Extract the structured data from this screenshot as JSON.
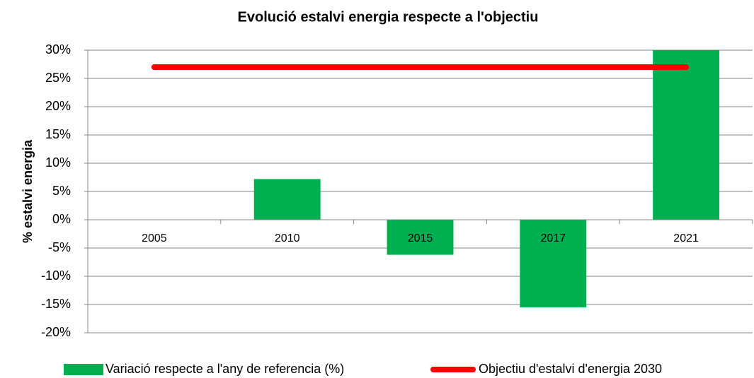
{
  "chart_data": {
    "type": "bar",
    "title": "Evolució estalvi energia respecte a l'objectiu",
    "y_label": "% estalvi energia",
    "categories": [
      "2005",
      "2010",
      "2015",
      "2017",
      "2021"
    ],
    "series": [
      {
        "name": "Variació respecte a l'any de referencia (%)",
        "type": "bar",
        "color": "#00b050",
        "values": [
          0,
          7.2,
          -6.2,
          -15.5,
          30
        ]
      },
      {
        "name": "Objectiu d'estalvi d'energia 2030",
        "type": "line",
        "color": "#ff0000",
        "values": [
          27,
          27,
          27,
          27,
          27
        ]
      }
    ],
    "ylim": [
      -20,
      30
    ],
    "yticks": [
      {
        "value": -20,
        "label": "-20%"
      },
      {
        "value": -15,
        "label": "-15%"
      },
      {
        "value": -10,
        "label": "-10%"
      },
      {
        "value": -5,
        "label": "-5%"
      },
      {
        "value": 0,
        "label": "0%"
      },
      {
        "value": 5,
        "label": "5%"
      },
      {
        "value": 10,
        "label": "10%"
      },
      {
        "value": 15,
        "label": "15%"
      },
      {
        "value": 20,
        "label": "20%"
      },
      {
        "value": 25,
        "label": "25%"
      },
      {
        "value": 30,
        "label": "30%"
      }
    ],
    "grid": true,
    "legend": "bottom"
  }
}
